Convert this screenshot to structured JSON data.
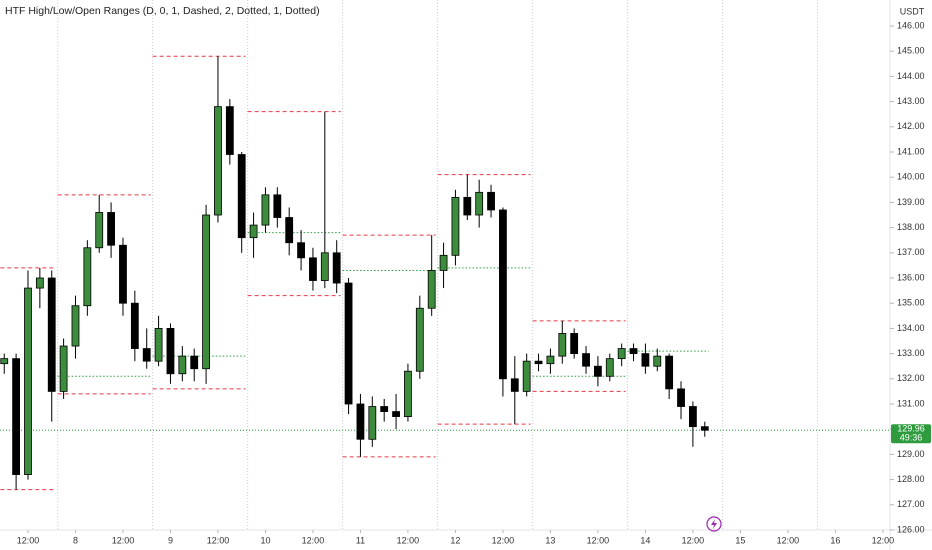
{
  "chart_data": {
    "type": "candlestick",
    "title": "HTF High/Low/Open Ranges (D, 0, 1, Dashed, 2, Dotted, 1, Dotted)",
    "currency": "USDT",
    "grid": false,
    "up_color": "#3d8b3d",
    "down_color": "#000000",
    "range_color": "#e53945",
    "open_color": "#2e9c3e",
    "xlim": [
      -7.07,
      217.8
    ],
    "ylim": [
      126,
      146
    ],
    "xticks": [
      {
        "value": 0,
        "label": "12:00"
      },
      {
        "value": 12,
        "label": "8"
      },
      {
        "value": 24,
        "label": "12:00"
      },
      {
        "value": 36,
        "label": "9"
      },
      {
        "value": 48,
        "label": "12:00"
      },
      {
        "value": 60,
        "label": "10"
      },
      {
        "value": 72,
        "label": "12:00"
      },
      {
        "value": 84,
        "label": "11"
      },
      {
        "value": 96,
        "label": "12:00"
      },
      {
        "value": 108,
        "label": "12"
      },
      {
        "value": 120,
        "label": "12:00"
      },
      {
        "value": 132,
        "label": "13"
      },
      {
        "value": 144,
        "label": "12:00"
      },
      {
        "value": 156,
        "label": "14"
      },
      {
        "value": 168,
        "label": "12:00"
      },
      {
        "value": 180,
        "label": "15"
      },
      {
        "value": 192,
        "label": "12:00"
      },
      {
        "value": 204,
        "label": "16"
      },
      {
        "value": 216,
        "label": "12:00"
      }
    ],
    "yticks": [
      {
        "value": 126,
        "label": "126.00"
      },
      {
        "value": 127,
        "label": "127.00"
      },
      {
        "value": 128,
        "label": "128.00"
      },
      {
        "value": 129,
        "label": "129.00"
      },
      {
        "value": 130,
        "label": "130.00"
      },
      {
        "value": 131,
        "label": "131.00"
      },
      {
        "value": 132,
        "label": "132.00"
      },
      {
        "value": 133,
        "label": "133.00"
      },
      {
        "value": 134,
        "label": "134.00"
      },
      {
        "value": 135,
        "label": "135.00"
      },
      {
        "value": 136,
        "label": "136.00"
      },
      {
        "value": 137,
        "label": "137.00"
      },
      {
        "value": 138,
        "label": "138.00"
      },
      {
        "value": 139,
        "label": "139.00"
      },
      {
        "value": 140,
        "label": "140.00"
      },
      {
        "value": 141,
        "label": "141.00"
      },
      {
        "value": 142,
        "label": "142.00"
      },
      {
        "value": 143,
        "label": "143.00"
      },
      {
        "value": 144,
        "label": "144.00"
      },
      {
        "value": 145,
        "label": "145.00"
      },
      {
        "value": 146,
        "label": "146.00"
      }
    ],
    "session_breaks": [
      7.5,
      31.5,
      55.5,
      79.5,
      103.5,
      127.5,
      151.5,
      175.5,
      199.5
    ],
    "candles": {
      "x": [
        -6,
        -3,
        0,
        3,
        6,
        9,
        12,
        15,
        18,
        21,
        24,
        27,
        30,
        33,
        36,
        39,
        42,
        45,
        48,
        51,
        54,
        57,
        60,
        63,
        66,
        69,
        72,
        75,
        78,
        81,
        84,
        87,
        90,
        93,
        96,
        99,
        102,
        105,
        108,
        111,
        114,
        117,
        120,
        123,
        126,
        129,
        132,
        135,
        138,
        141,
        144,
        147,
        150,
        153,
        156,
        159,
        162,
        165,
        168,
        171
      ],
      "open": [
        132.6,
        132.8,
        128.2,
        135.6,
        136.0,
        131.5,
        133.3,
        134.9,
        137.2,
        138.6,
        137.3,
        135.0,
        133.2,
        132.7,
        134.0,
        132.2,
        132.9,
        132.4,
        138.5,
        142.8,
        140.9,
        137.6,
        138.1,
        139.3,
        138.4,
        137.4,
        136.8,
        135.9,
        137.0,
        135.8,
        131.0,
        129.6,
        130.9,
        130.7,
        130.5,
        132.3,
        134.8,
        136.3,
        136.9,
        139.2,
        138.5,
        139.4,
        138.7,
        132.0,
        131.5,
        132.7,
        132.6,
        132.9,
        133.8,
        133.0,
        132.5,
        132.1,
        132.8,
        133.2,
        133.0,
        132.5,
        132.9,
        131.6,
        130.9,
        130.1
      ],
      "high": [
        133.0,
        133.0,
        136.3,
        136.4,
        136.3,
        133.6,
        135.3,
        137.5,
        139.3,
        139.0,
        137.6,
        135.5,
        134.0,
        134.5,
        134.2,
        133.3,
        133.2,
        138.9,
        144.8,
        143.1,
        141.0,
        138.6,
        139.6,
        139.6,
        138.8,
        137.9,
        137.2,
        142.6,
        137.5,
        136.0,
        131.4,
        131.3,
        131.2,
        131.4,
        132.6,
        135.3,
        137.7,
        137.4,
        139.5,
        140.1,
        139.9,
        139.7,
        138.8,
        132.9,
        133.0,
        133.0,
        133.2,
        134.3,
        134.0,
        133.3,
        132.9,
        133.0,
        133.4,
        133.4,
        133.4,
        133.2,
        133.0,
        131.9,
        131.1,
        130.3
      ],
      "low": [
        132.2,
        127.6,
        128.0,
        134.8,
        130.3,
        131.2,
        132.8,
        134.5,
        137.0,
        136.8,
        134.5,
        132.7,
        132.4,
        132.5,
        131.8,
        131.9,
        131.9,
        131.8,
        138.2,
        140.5,
        137.0,
        136.8,
        137.8,
        138.0,
        136.9,
        136.3,
        135.5,
        135.6,
        135.4,
        130.6,
        128.9,
        129.3,
        130.3,
        130.0,
        130.3,
        132.0,
        134.5,
        135.6,
        136.5,
        138.3,
        138.0,
        138.4,
        131.3,
        130.2,
        131.3,
        132.3,
        132.2,
        132.6,
        132.8,
        132.2,
        131.7,
        131.9,
        132.5,
        132.7,
        132.2,
        132.3,
        131.2,
        130.4,
        129.3,
        129.7
      ],
      "close": [
        132.8,
        128.2,
        135.6,
        136.0,
        131.5,
        133.3,
        134.9,
        137.2,
        138.6,
        137.3,
        135.0,
        133.2,
        132.7,
        134.0,
        132.2,
        132.9,
        132.4,
        138.5,
        142.8,
        140.9,
        137.6,
        138.1,
        139.3,
        138.4,
        137.4,
        136.8,
        135.9,
        137.0,
        135.8,
        131.0,
        129.6,
        130.9,
        130.7,
        130.5,
        132.3,
        134.8,
        136.3,
        136.9,
        139.2,
        138.5,
        139.4,
        138.7,
        132.0,
        131.5,
        132.7,
        132.6,
        132.9,
        133.8,
        133.0,
        132.5,
        132.1,
        132.8,
        133.2,
        133.0,
        132.5,
        132.9,
        131.6,
        130.9,
        130.1,
        129.96
      ]
    },
    "ranges": [
      {
        "start": -7,
        "end": 7.5,
        "high": 136.4,
        "low": 127.6,
        "open": null
      },
      {
        "start": 7.5,
        "end": 31.5,
        "high": 139.3,
        "low": 131.4,
        "open": 132.1
      },
      {
        "start": 31.5,
        "end": 55.5,
        "high": 144.8,
        "low": 131.6,
        "open": 132.9
      },
      {
        "start": 55.5,
        "end": 79.5,
        "high": 142.6,
        "low": 135.3,
        "open": 137.8
      },
      {
        "start": 79.5,
        "end": 103.5,
        "high": 137.7,
        "low": 128.9,
        "open": 136.3
      },
      {
        "start": 103.5,
        "end": 127.5,
        "high": 140.1,
        "low": 130.2,
        "open": 136.4
      },
      {
        "start": 127.5,
        "end": 151.5,
        "high": 134.3,
        "low": 131.5,
        "open": 132.1
      },
      {
        "start": 151.5,
        "end": 172.5,
        "high": null,
        "low": null,
        "open": 133.1
      }
    ],
    "current_price": {
      "value": 129.96,
      "countdown": "49:36",
      "color": "#2e9c3e"
    }
  }
}
